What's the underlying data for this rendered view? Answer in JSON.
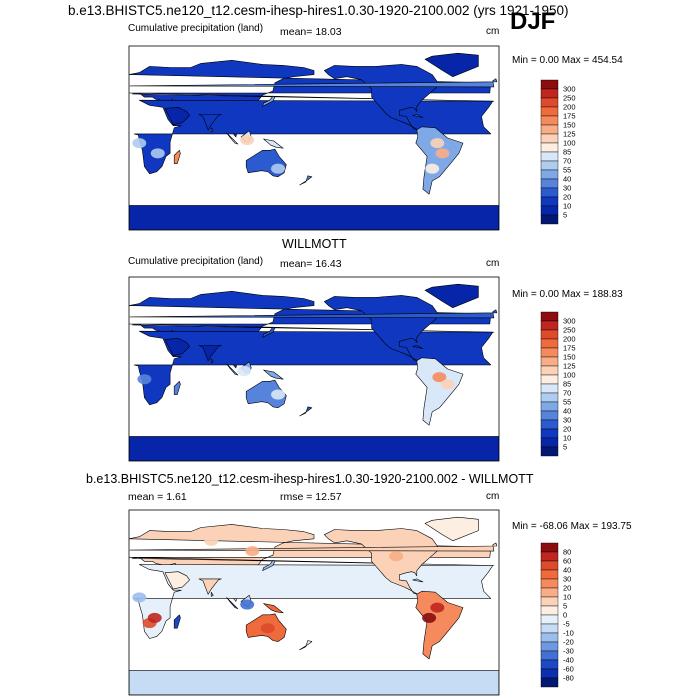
{
  "figure": {
    "main_title": "b.e13.BHISTC5.ne120_t12.cesm-ihesp-hires1.0.30-1920-2100.002 (yrs 1921-1950)",
    "season": "DJF"
  },
  "colors": {
    "ocean": "#ffffff",
    "land_dark_blue": "#0a2fb4",
    "coast": "#000000"
  },
  "chart_data": [
    {
      "type": "heatmap",
      "title": "",
      "label": "Cumulative precipitation (land)",
      "mean_text": "mean=  18.03",
      "unit": "cm",
      "minmax_text": "Min =   0.00 Max = 454.54",
      "colorbar": {
        "labels": [
          "300",
          "250",
          "200",
          "175",
          "150",
          "125",
          "100",
          "85",
          "70",
          "55",
          "40",
          "30",
          "20",
          "10",
          "5"
        ],
        "colors": [
          "#8b0d0f",
          "#c0261f",
          "#de4a2b",
          "#ef6b3b",
          "#f58b5c",
          "#f8ad86",
          "#fbd1b8",
          "#fdeee2",
          "#d9e8f8",
          "#aecbf0",
          "#7fa8e6",
          "#5683dc",
          "#2c5bd0",
          "#0f37c0",
          "#0725a8",
          "#031873"
        ]
      }
    },
    {
      "type": "heatmap",
      "title": "WILLMOTT",
      "label": "Cumulative precipitation (land)",
      "mean_text": "mean=  16.43",
      "unit": "cm",
      "minmax_text": "Min =   0.00 Max = 188.83",
      "colorbar": {
        "labels": [
          "300",
          "250",
          "200",
          "175",
          "150",
          "125",
          "100",
          "85",
          "70",
          "55",
          "40",
          "30",
          "20",
          "10",
          "5"
        ],
        "colors": [
          "#8b0d0f",
          "#c0261f",
          "#de4a2b",
          "#ef6b3b",
          "#f58b5c",
          "#f8ad86",
          "#fbd1b8",
          "#fdeee2",
          "#d9e8f8",
          "#aecbf0",
          "#7fa8e6",
          "#5683dc",
          "#2c5bd0",
          "#0f37c0",
          "#0725a8",
          "#031873"
        ]
      }
    },
    {
      "type": "heatmap",
      "title": "b.e13.BHISTC5.ne120_t12.cesm-ihesp-hires1.0.30-1920-2100.002 - WILLMOTT",
      "mean_text": "mean =  1.61",
      "rmse_text": "rmse =  12.57",
      "unit": "cm",
      "minmax_text": "Min = -68.06 Max = 193.75",
      "colorbar": {
        "labels": [
          "80",
          "60",
          "40",
          "30",
          "20",
          "10",
          "5",
          "0",
          "-5",
          "-10",
          "-20",
          "-30",
          "-40",
          "-60",
          "-80"
        ],
        "colors": [
          "#8b0d0f",
          "#c0261f",
          "#de4a2b",
          "#ef6b3b",
          "#f58b5c",
          "#f8ad86",
          "#fbd1b8",
          "#fdeee2",
          "#e6f0fb",
          "#c6dbf4",
          "#9cbeec",
          "#6f98e0",
          "#4270d4",
          "#1d49c6",
          "#0c2eaf",
          "#031873"
        ]
      }
    }
  ]
}
